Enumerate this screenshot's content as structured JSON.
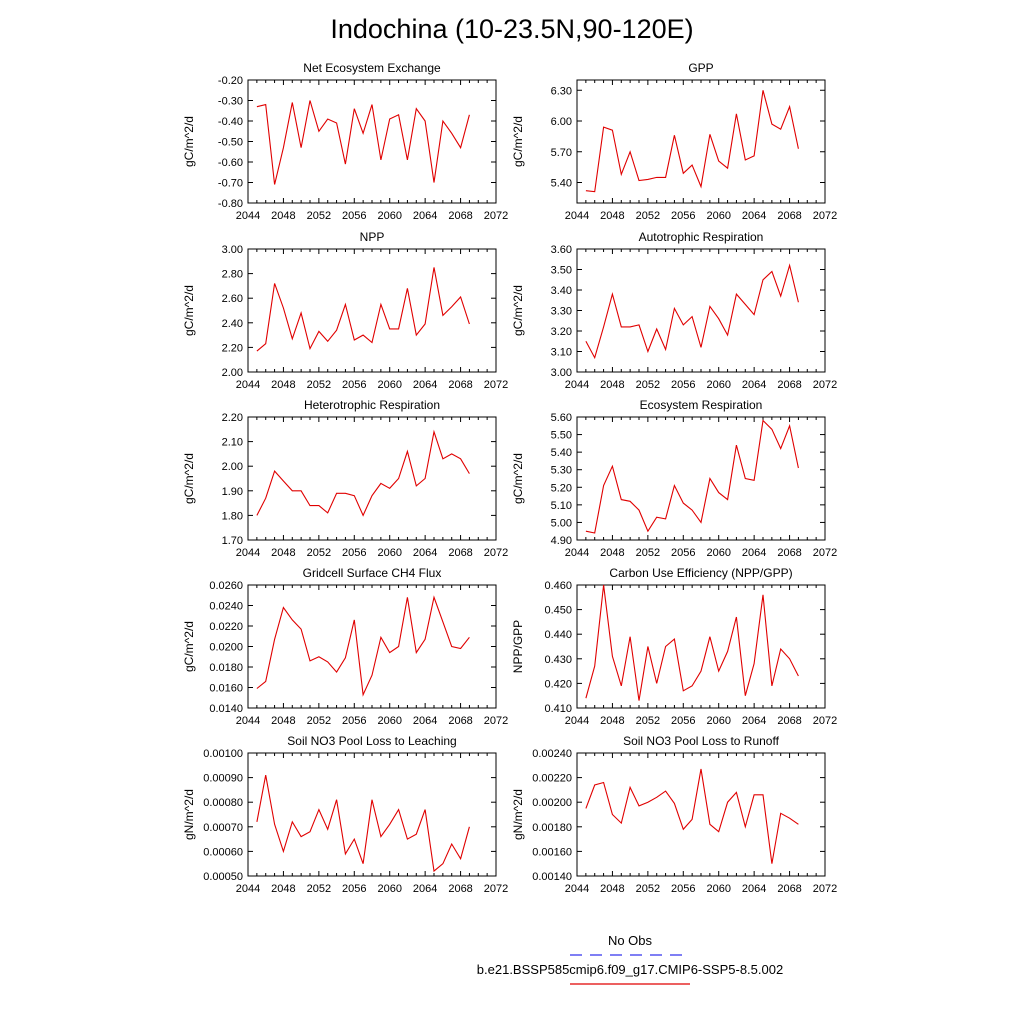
{
  "title": "Indochina (10-23.5N,90-120E)",
  "legend": {
    "obs_label": "No Obs",
    "obs_color": "#3333ee",
    "case_label": "b.e21.BSSP585cmip6.f09_g17.CMIP6-SSP5-8.5.002",
    "case_color": "#e00000"
  },
  "chart_data": [
    {
      "type": "line",
      "title": "Net Ecosystem Exchange",
      "ylabel": "gC/m^2/d",
      "xlim": [
        2044,
        2072
      ],
      "xticks": [
        "2044",
        "2048",
        "2052",
        "2056",
        "2060",
        "2064",
        "2068",
        "2072"
      ],
      "ylim": [
        -0.8,
        -0.2
      ],
      "yticks": [
        "-0.20",
        "-0.30",
        "-0.40",
        "-0.50",
        "-0.60",
        "-0.70",
        "-0.80"
      ],
      "ytick_values": [
        -0.2,
        -0.3,
        -0.4,
        -0.5,
        -0.6,
        -0.7,
        -0.8
      ],
      "color": "#e00000",
      "x": [
        2045,
        2046,
        2047,
        2048,
        2049,
        2050,
        2051,
        2052,
        2053,
        2054,
        2055,
        2056,
        2057,
        2058,
        2059,
        2060,
        2061,
        2062,
        2063,
        2064,
        2065,
        2066,
        2067,
        2068,
        2069
      ],
      "values": [
        -0.33,
        -0.32,
        -0.71,
        -0.53,
        -0.31,
        -0.53,
        -0.3,
        -0.45,
        -0.39,
        -0.41,
        -0.61,
        -0.34,
        -0.46,
        -0.32,
        -0.59,
        -0.39,
        -0.37,
        -0.59,
        -0.34,
        -0.4,
        -0.7,
        -0.4,
        -0.46,
        -0.53,
        -0.37
      ]
    },
    {
      "type": "line",
      "title": "GPP",
      "ylabel": "gC/m^2/d",
      "xlim": [
        2044,
        2072
      ],
      "xticks": [
        "2044",
        "2048",
        "2052",
        "2056",
        "2060",
        "2064",
        "2068",
        "2072"
      ],
      "ylim": [
        5.2,
        6.4
      ],
      "yticks": [
        "5.40",
        "5.70",
        "6.00",
        "6.30"
      ],
      "ytick_values": [
        5.4,
        5.7,
        6.0,
        6.3
      ],
      "color": "#e00000",
      "x": [
        2045,
        2046,
        2047,
        2048,
        2049,
        2050,
        2051,
        2052,
        2053,
        2054,
        2055,
        2056,
        2057,
        2058,
        2059,
        2060,
        2061,
        2062,
        2063,
        2064,
        2065,
        2066,
        2067,
        2068,
        2069
      ],
      "values": [
        5.32,
        5.31,
        5.94,
        5.91,
        5.48,
        5.7,
        5.42,
        5.43,
        5.45,
        5.45,
        5.86,
        5.49,
        5.57,
        5.36,
        5.87,
        5.61,
        5.54,
        6.07,
        5.62,
        5.66,
        6.3,
        5.97,
        5.92,
        6.14,
        5.73
      ]
    },
    {
      "type": "line",
      "title": "NPP",
      "ylabel": "gC/m^2/d",
      "xlim": [
        2044,
        2072
      ],
      "xticks": [
        "2044",
        "2048",
        "2052",
        "2056",
        "2060",
        "2064",
        "2068",
        "2072"
      ],
      "ylim": [
        2.0,
        3.0
      ],
      "yticks": [
        "2.00",
        "2.20",
        "2.40",
        "2.60",
        "2.80",
        "3.00"
      ],
      "ytick_values": [
        2.0,
        2.2,
        2.4,
        2.6,
        2.8,
        3.0
      ],
      "color": "#e00000",
      "x": [
        2045,
        2046,
        2047,
        2048,
        2049,
        2050,
        2051,
        2052,
        2053,
        2054,
        2055,
        2056,
        2057,
        2058,
        2059,
        2060,
        2061,
        2062,
        2063,
        2064,
        2065,
        2066,
        2067,
        2068,
        2069
      ],
      "values": [
        2.17,
        2.23,
        2.72,
        2.52,
        2.27,
        2.48,
        2.19,
        2.33,
        2.25,
        2.34,
        2.55,
        2.26,
        2.3,
        2.24,
        2.55,
        2.35,
        2.35,
        2.68,
        2.3,
        2.39,
        2.85,
        2.46,
        2.53,
        2.61,
        2.39
      ]
    },
    {
      "type": "line",
      "title": "Autotrophic Respiration",
      "ylabel": "gC/m^2/d",
      "xlim": [
        2044,
        2072
      ],
      "xticks": [
        "2044",
        "2048",
        "2052",
        "2056",
        "2060",
        "2064",
        "2068",
        "2072"
      ],
      "ylim": [
        3.0,
        3.6
      ],
      "yticks": [
        "3.00",
        "3.10",
        "3.20",
        "3.30",
        "3.40",
        "3.50",
        "3.60"
      ],
      "ytick_values": [
        3.0,
        3.1,
        3.2,
        3.3,
        3.4,
        3.5,
        3.6
      ],
      "color": "#e00000",
      "x": [
        2045,
        2046,
        2047,
        2048,
        2049,
        2050,
        2051,
        2052,
        2053,
        2054,
        2055,
        2056,
        2057,
        2058,
        2059,
        2060,
        2061,
        2062,
        2063,
        2064,
        2065,
        2066,
        2067,
        2068,
        2069
      ],
      "values": [
        3.15,
        3.07,
        3.22,
        3.38,
        3.22,
        3.22,
        3.23,
        3.1,
        3.21,
        3.11,
        3.31,
        3.23,
        3.27,
        3.12,
        3.32,
        3.26,
        3.18,
        3.38,
        3.33,
        3.28,
        3.45,
        3.49,
        3.37,
        3.52,
        3.34
      ]
    },
    {
      "type": "line",
      "title": "Heterotrophic Respiration",
      "ylabel": "gC/m^2/d",
      "xlim": [
        2044,
        2072
      ],
      "xticks": [
        "2044",
        "2048",
        "2052",
        "2056",
        "2060",
        "2064",
        "2068",
        "2072"
      ],
      "ylim": [
        1.7,
        2.2
      ],
      "yticks": [
        "1.70",
        "1.80",
        "1.90",
        "2.00",
        "2.10",
        "2.20"
      ],
      "ytick_values": [
        1.7,
        1.8,
        1.9,
        2.0,
        2.1,
        2.2
      ],
      "color": "#e00000",
      "x": [
        2045,
        2046,
        2047,
        2048,
        2049,
        2050,
        2051,
        2052,
        2053,
        2054,
        2055,
        2056,
        2057,
        2058,
        2059,
        2060,
        2061,
        2062,
        2063,
        2064,
        2065,
        2066,
        2067,
        2068,
        2069
      ],
      "values": [
        1.8,
        1.87,
        1.98,
        1.94,
        1.9,
        1.9,
        1.84,
        1.84,
        1.81,
        1.89,
        1.89,
        1.88,
        1.8,
        1.88,
        1.93,
        1.91,
        1.95,
        2.06,
        1.92,
        1.95,
        2.14,
        2.03,
        2.05,
        2.03,
        1.97
      ]
    },
    {
      "type": "line",
      "title": "Ecosystem Respiration",
      "ylabel": "gC/m^2/d",
      "xlim": [
        2044,
        2072
      ],
      "xticks": [
        "2044",
        "2048",
        "2052",
        "2056",
        "2060",
        "2064",
        "2068",
        "2072"
      ],
      "ylim": [
        4.9,
        5.6
      ],
      "yticks": [
        "4.90",
        "5.00",
        "5.10",
        "5.20",
        "5.30",
        "5.40",
        "5.50",
        "5.60"
      ],
      "ytick_values": [
        4.9,
        5.0,
        5.1,
        5.2,
        5.3,
        5.4,
        5.5,
        5.6
      ],
      "color": "#e00000",
      "x": [
        2045,
        2046,
        2047,
        2048,
        2049,
        2050,
        2051,
        2052,
        2053,
        2054,
        2055,
        2056,
        2057,
        2058,
        2059,
        2060,
        2061,
        2062,
        2063,
        2064,
        2065,
        2066,
        2067,
        2068,
        2069
      ],
      "values": [
        4.95,
        4.94,
        5.21,
        5.32,
        5.13,
        5.12,
        5.07,
        4.95,
        5.03,
        5.02,
        5.21,
        5.11,
        5.07,
        5.0,
        5.25,
        5.17,
        5.13,
        5.44,
        5.25,
        5.24,
        5.58,
        5.53,
        5.42,
        5.55,
        5.31
      ]
    },
    {
      "type": "line",
      "title": "Gridcell Surface CH4 Flux",
      "ylabel": "gC/m^2/d",
      "xlim": [
        2044,
        2072
      ],
      "xticks": [
        "2044",
        "2048",
        "2052",
        "2056",
        "2060",
        "2064",
        "2068",
        "2072"
      ],
      "ylim": [
        0.014,
        0.026
      ],
      "yticks": [
        "0.0140",
        "0.0160",
        "0.0180",
        "0.0200",
        "0.0220",
        "0.0240",
        "0.0260"
      ],
      "ytick_values": [
        0.014,
        0.016,
        0.018,
        0.02,
        0.022,
        0.024,
        0.026
      ],
      "color": "#e00000",
      "x": [
        2045,
        2046,
        2047,
        2048,
        2049,
        2050,
        2051,
        2052,
        2053,
        2054,
        2055,
        2056,
        2057,
        2058,
        2059,
        2060,
        2061,
        2062,
        2063,
        2064,
        2065,
        2066,
        2067,
        2068,
        2069
      ],
      "values": [
        0.0159,
        0.0166,
        0.0207,
        0.0238,
        0.0226,
        0.0217,
        0.0186,
        0.019,
        0.0185,
        0.0175,
        0.0189,
        0.0226,
        0.0153,
        0.0172,
        0.0209,
        0.0194,
        0.02,
        0.0248,
        0.0194,
        0.0207,
        0.0248,
        0.0224,
        0.02,
        0.0198,
        0.0209
      ]
    },
    {
      "type": "line",
      "title": "Carbon Use Efficiency (NPP/GPP)",
      "ylabel": "NPP/GPP",
      "xlim": [
        2044,
        2072
      ],
      "xticks": [
        "2044",
        "2048",
        "2052",
        "2056",
        "2060",
        "2064",
        "2068",
        "2072"
      ],
      "ylim": [
        0.41,
        0.46
      ],
      "yticks": [
        "0.410",
        "0.420",
        "0.430",
        "0.440",
        "0.450",
        "0.460"
      ],
      "ytick_values": [
        0.41,
        0.42,
        0.43,
        0.44,
        0.45,
        0.46
      ],
      "color": "#e00000",
      "x": [
        2045,
        2046,
        2047,
        2048,
        2049,
        2050,
        2051,
        2052,
        2053,
        2054,
        2055,
        2056,
        2057,
        2058,
        2059,
        2060,
        2061,
        2062,
        2063,
        2064,
        2065,
        2066,
        2067,
        2068,
        2069
      ],
      "values": [
        0.414,
        0.427,
        0.46,
        0.431,
        0.419,
        0.439,
        0.413,
        0.435,
        0.42,
        0.435,
        0.438,
        0.417,
        0.419,
        0.425,
        0.439,
        0.425,
        0.433,
        0.447,
        0.415,
        0.428,
        0.456,
        0.419,
        0.434,
        0.43,
        0.423
      ]
    },
    {
      "type": "line",
      "title": "Soil NO3 Pool Loss to Leaching",
      "ylabel": "gN/m^2/d",
      "xlim": [
        2044,
        2072
      ],
      "xticks": [
        "2044",
        "2048",
        "2052",
        "2056",
        "2060",
        "2064",
        "2068",
        "2072"
      ],
      "ylim": [
        0.0005,
        0.001
      ],
      "yticks": [
        "0.00050",
        "0.00060",
        "0.00070",
        "0.00080",
        "0.00090",
        "0.00100"
      ],
      "ytick_values": [
        0.0005,
        0.0006,
        0.0007,
        0.0008,
        0.0009,
        0.001
      ],
      "color": "#e00000",
      "x": [
        2045,
        2046,
        2047,
        2048,
        2049,
        2050,
        2051,
        2052,
        2053,
        2054,
        2055,
        2056,
        2057,
        2058,
        2059,
        2060,
        2061,
        2062,
        2063,
        2064,
        2065,
        2066,
        2067,
        2068,
        2069
      ],
      "values": [
        0.00072,
        0.00091,
        0.00071,
        0.0006,
        0.00072,
        0.00066,
        0.00068,
        0.00077,
        0.00069,
        0.00081,
        0.00059,
        0.00065,
        0.00055,
        0.00081,
        0.00066,
        0.00071,
        0.00077,
        0.00065,
        0.00067,
        0.00077,
        0.00052,
        0.00055,
        0.00063,
        0.00057,
        0.0007
      ]
    },
    {
      "type": "line",
      "title": "Soil NO3 Pool Loss to Runoff",
      "ylabel": "gN/m^2/d",
      "xlim": [
        2044,
        2072
      ],
      "xticks": [
        "2044",
        "2048",
        "2052",
        "2056",
        "2060",
        "2064",
        "2068",
        "2072"
      ],
      "ylim": [
        0.0014,
        0.0024
      ],
      "yticks": [
        "0.00140",
        "0.00160",
        "0.00180",
        "0.00200",
        "0.00220",
        "0.00240"
      ],
      "ytick_values": [
        0.0014,
        0.0016,
        0.0018,
        0.002,
        0.0022,
        0.0024
      ],
      "color": "#e00000",
      "x": [
        2045,
        2046,
        2047,
        2048,
        2049,
        2050,
        2051,
        2052,
        2053,
        2054,
        2055,
        2056,
        2057,
        2058,
        2059,
        2060,
        2061,
        2062,
        2063,
        2064,
        2065,
        2066,
        2067,
        2068,
        2069
      ],
      "values": [
        0.00195,
        0.00214,
        0.00216,
        0.0019,
        0.00183,
        0.00212,
        0.00197,
        0.002,
        0.00204,
        0.00209,
        0.00199,
        0.00178,
        0.00186,
        0.00227,
        0.00182,
        0.00176,
        0.002,
        0.00208,
        0.0018,
        0.00206,
        0.00206,
        0.0015,
        0.00191,
        0.00187,
        0.00182
      ]
    }
  ]
}
